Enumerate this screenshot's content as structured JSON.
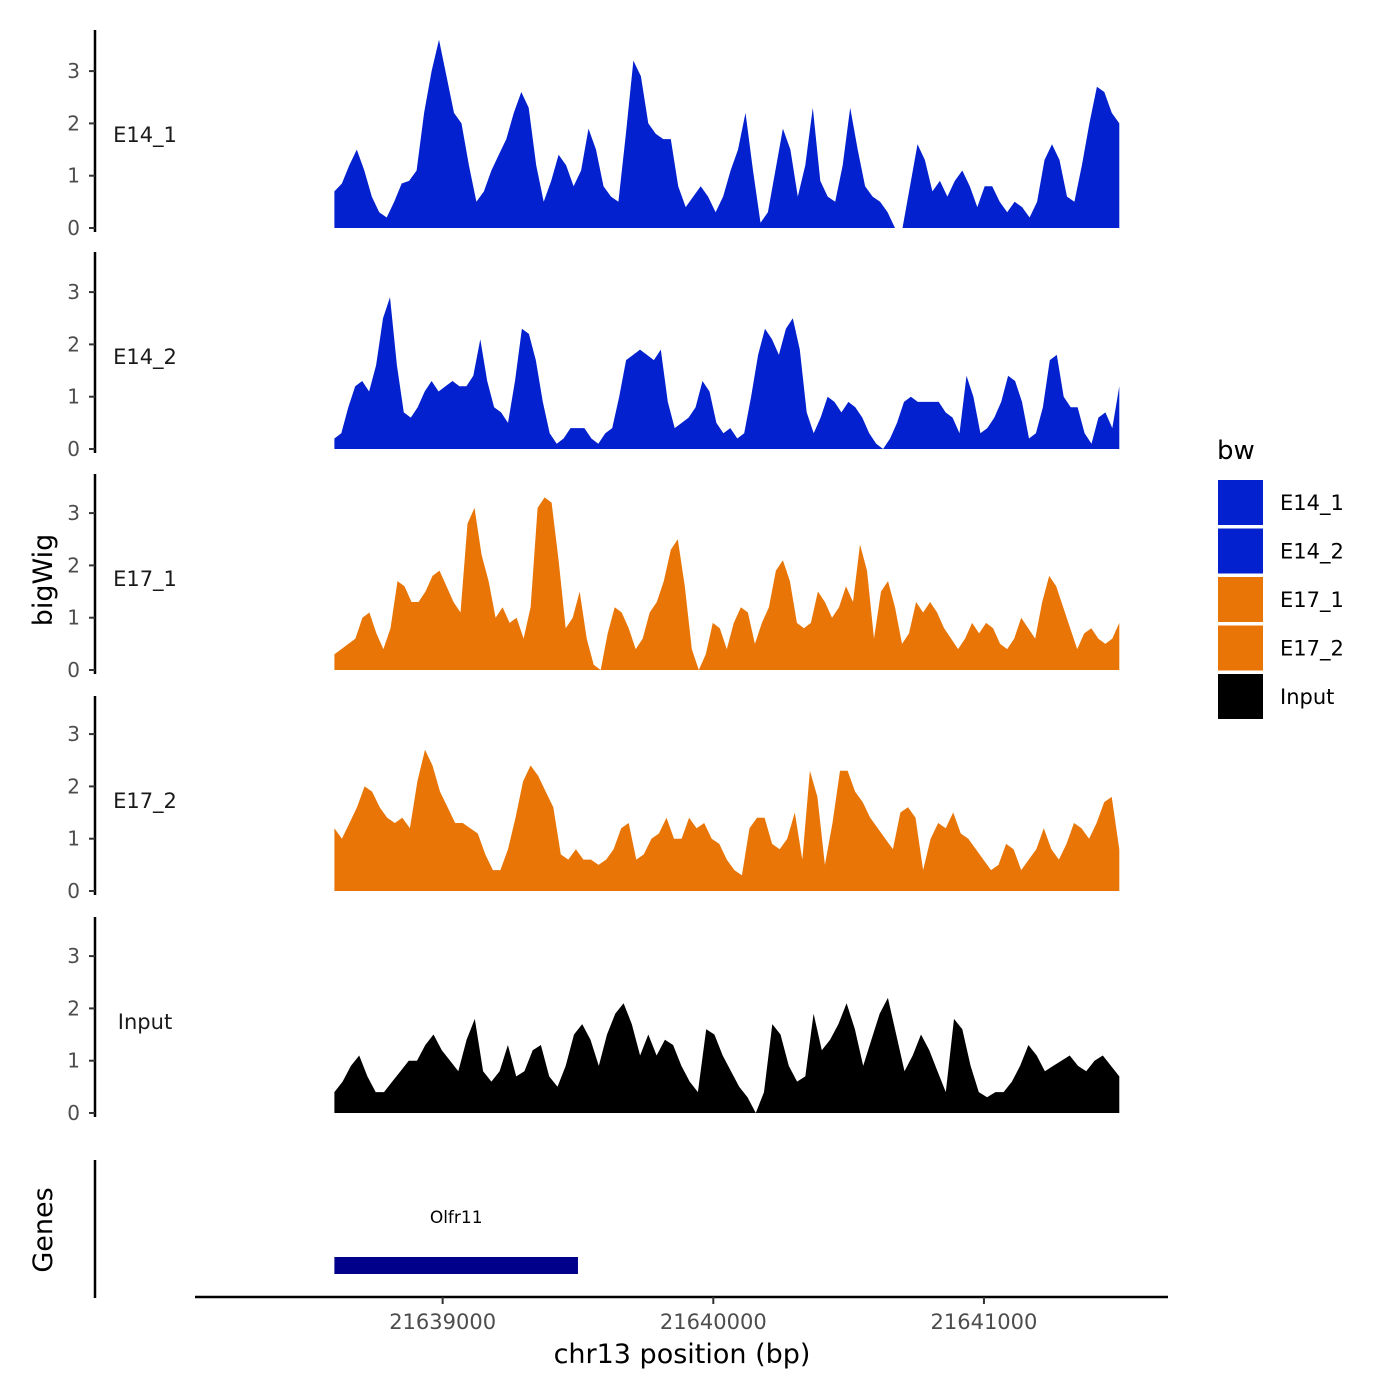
{
  "chart_data": {
    "type": "area",
    "ylabel": "bigWig",
    "genes_label": "Genes",
    "xlabel": "chr13 position (bp)",
    "x_range": [
      21638600,
      21641500
    ],
    "xlim": [
      21638085,
      21641680
    ],
    "x_ticks": [
      21639000,
      21640000,
      21641000
    ],
    "x_tick_labels": [
      "21639000",
      "21640000",
      "21641000"
    ],
    "ylim": [
      0,
      3.8
    ],
    "y_ticks": [
      0,
      1,
      2,
      3
    ],
    "y_tick_labels": [
      "0",
      "1",
      "2",
      "3"
    ],
    "legend": {
      "title": "bw",
      "position": "right",
      "entries": [
        {
          "label": "E14_1",
          "color": "#0321CF"
        },
        {
          "label": "E14_2",
          "color": "#0321CF"
        },
        {
          "label": "E17_1",
          "color": "#E87506"
        },
        {
          "label": "E17_2",
          "color": "#E87506"
        },
        {
          "label": "Input",
          "color": "#000000"
        }
      ]
    },
    "series": [
      {
        "name": "E14_1",
        "color": "#0321CF",
        "values": [
          0.7,
          0.85,
          1.2,
          1.5,
          1.1,
          0.6,
          0.3,
          0.2,
          0.5,
          0.85,
          0.9,
          1.1,
          2.2,
          3.0,
          3.6,
          2.9,
          2.2,
          2.0,
          1.2,
          0.5,
          0.7,
          1.1,
          1.4,
          1.7,
          2.2,
          2.6,
          2.3,
          1.2,
          0.5,
          0.9,
          1.4,
          1.2,
          0.8,
          1.1,
          1.9,
          1.5,
          0.8,
          0.6,
          0.5,
          1.8,
          3.2,
          2.9,
          2.0,
          1.8,
          1.7,
          1.7,
          0.8,
          0.4,
          0.6,
          0.8,
          0.6,
          0.3,
          0.6,
          1.1,
          1.5,
          2.2,
          1.1,
          0.1,
          0.3,
          1.1,
          1.9,
          1.5,
          0.6,
          1.2,
          2.3,
          0.9,
          0.6,
          0.5,
          1.2,
          2.3,
          1.5,
          0.8,
          0.6,
          0.5,
          0.3,
          0.0,
          0.0,
          0.8,
          1.6,
          1.3,
          0.7,
          0.9,
          0.6,
          0.9,
          1.1,
          0.8,
          0.4,
          0.8,
          0.8,
          0.5,
          0.3,
          0.5,
          0.4,
          0.2,
          0.5,
          1.3,
          1.6,
          1.3,
          0.6,
          0.5,
          1.2,
          2.0,
          2.7,
          2.6,
          2.2,
          2.0
        ]
      },
      {
        "name": "E14_2",
        "color": "#0321CF",
        "values": [
          0.2,
          0.3,
          0.8,
          1.2,
          1.3,
          1.1,
          1.6,
          2.5,
          2.9,
          1.6,
          0.7,
          0.6,
          0.8,
          1.1,
          1.3,
          1.1,
          1.2,
          1.3,
          1.2,
          1.2,
          1.4,
          2.1,
          1.3,
          0.8,
          0.7,
          0.5,
          1.3,
          2.3,
          2.2,
          1.7,
          0.9,
          0.3,
          0.1,
          0.2,
          0.4,
          0.4,
          0.4,
          0.2,
          0.1,
          0.3,
          0.4,
          1.0,
          1.7,
          1.8,
          1.9,
          1.8,
          1.7,
          1.9,
          0.9,
          0.4,
          0.5,
          0.6,
          0.8,
          1.3,
          1.1,
          0.5,
          0.3,
          0.4,
          0.2,
          0.3,
          1.0,
          1.8,
          2.3,
          2.1,
          1.8,
          2.3,
          2.5,
          1.9,
          0.7,
          0.3,
          0.6,
          1.0,
          0.9,
          0.7,
          0.9,
          0.8,
          0.6,
          0.3,
          0.1,
          0.0,
          0.2,
          0.5,
          0.9,
          1.0,
          0.9,
          0.9,
          0.9,
          0.9,
          0.7,
          0.6,
          0.3,
          1.4,
          1.0,
          0.3,
          0.4,
          0.6,
          0.9,
          1.4,
          1.3,
          0.9,
          0.2,
          0.3,
          0.8,
          1.7,
          1.8,
          1.0,
          0.8,
          0.8,
          0.3,
          0.1,
          0.6,
          0.7,
          0.4,
          1.2
        ]
      },
      {
        "name": "E17_1",
        "color": "#E87506",
        "values": [
          0.3,
          0.4,
          0.5,
          0.6,
          1.0,
          1.1,
          0.7,
          0.4,
          0.8,
          1.7,
          1.6,
          1.3,
          1.3,
          1.5,
          1.8,
          1.9,
          1.6,
          1.3,
          1.1,
          2.8,
          3.1,
          2.2,
          1.7,
          1.0,
          1.2,
          0.9,
          1.0,
          0.6,
          1.2,
          3.1,
          3.3,
          3.2,
          2.1,
          0.8,
          1.0,
          1.5,
          0.6,
          0.1,
          0.0,
          0.7,
          1.2,
          1.1,
          0.8,
          0.4,
          0.6,
          1.1,
          1.3,
          1.7,
          2.3,
          2.5,
          1.6,
          0.4,
          0.0,
          0.3,
          0.9,
          0.8,
          0.4,
          0.9,
          1.2,
          1.1,
          0.5,
          0.9,
          1.2,
          1.9,
          2.1,
          1.7,
          0.9,
          0.8,
          0.9,
          1.5,
          1.3,
          1.0,
          1.2,
          1.6,
          1.3,
          2.4,
          1.9,
          0.6,
          1.5,
          1.7,
          1.2,
          0.5,
          0.7,
          1.3,
          1.1,
          1.3,
          1.1,
          0.8,
          0.6,
          0.4,
          0.6,
          0.9,
          0.7,
          0.9,
          0.8,
          0.5,
          0.4,
          0.6,
          1.0,
          0.8,
          0.6,
          1.3,
          1.8,
          1.6,
          1.2,
          0.8,
          0.4,
          0.7,
          0.8,
          0.6,
          0.5,
          0.6,
          0.9
        ]
      },
      {
        "name": "E17_2",
        "color": "#E87506",
        "values": [
          1.2,
          1.0,
          1.3,
          1.6,
          2.0,
          1.9,
          1.6,
          1.4,
          1.3,
          1.4,
          1.2,
          2.1,
          2.7,
          2.4,
          1.9,
          1.6,
          1.3,
          1.3,
          1.2,
          1.1,
          0.7,
          0.4,
          0.4,
          0.8,
          1.4,
          2.1,
          2.4,
          2.2,
          1.9,
          1.6,
          0.7,
          0.6,
          0.8,
          0.6,
          0.6,
          0.5,
          0.6,
          0.8,
          1.2,
          1.3,
          0.6,
          0.7,
          1.0,
          1.1,
          1.4,
          1.0,
          1.0,
          1.4,
          1.2,
          1.3,
          1.0,
          0.9,
          0.6,
          0.4,
          0.3,
          1.2,
          1.4,
          1.4,
          0.9,
          0.8,
          1.0,
          1.5,
          0.6,
          2.3,
          1.8,
          0.5,
          1.3,
          2.3,
          2.3,
          1.9,
          1.7,
          1.4,
          1.2,
          1.0,
          0.8,
          1.5,
          1.6,
          1.4,
          0.4,
          1.0,
          1.3,
          1.2,
          1.5,
          1.1,
          1.0,
          0.8,
          0.6,
          0.4,
          0.5,
          0.9,
          0.8,
          0.4,
          0.6,
          0.8,
          1.2,
          0.8,
          0.6,
          0.9,
          1.3,
          1.2,
          1.0,
          1.3,
          1.7,
          1.8,
          0.8
        ]
      },
      {
        "name": "Input",
        "color": "#000000",
        "values": [
          0.4,
          0.6,
          0.9,
          1.1,
          0.7,
          0.4,
          0.4,
          0.6,
          0.8,
          1.0,
          1.0,
          1.3,
          1.5,
          1.2,
          1.0,
          0.8,
          1.4,
          1.8,
          0.8,
          0.6,
          0.8,
          1.3,
          0.7,
          0.8,
          1.2,
          1.3,
          0.7,
          0.5,
          0.9,
          1.5,
          1.7,
          1.4,
          0.9,
          1.5,
          1.9,
          2.1,
          1.7,
          1.1,
          1.5,
          1.1,
          1.4,
          1.3,
          0.9,
          0.6,
          0.4,
          1.6,
          1.5,
          1.1,
          0.8,
          0.5,
          0.3,
          0.0,
          0.4,
          1.7,
          1.5,
          0.9,
          0.6,
          0.7,
          1.9,
          1.2,
          1.4,
          1.7,
          2.1,
          1.6,
          0.9,
          1.4,
          1.9,
          2.2,
          1.5,
          0.8,
          1.1,
          1.5,
          1.2,
          0.8,
          0.4,
          1.8,
          1.6,
          0.9,
          0.4,
          0.3,
          0.4,
          0.4,
          0.6,
          0.9,
          1.3,
          1.1,
          0.8,
          0.9,
          1.0,
          1.1,
          0.9,
          0.8,
          1.0,
          1.1,
          0.9,
          0.7
        ]
      }
    ],
    "genes": [
      {
        "name": "Olfr11",
        "start": 21638600,
        "end": 21639500,
        "color": "#00008B"
      }
    ]
  }
}
